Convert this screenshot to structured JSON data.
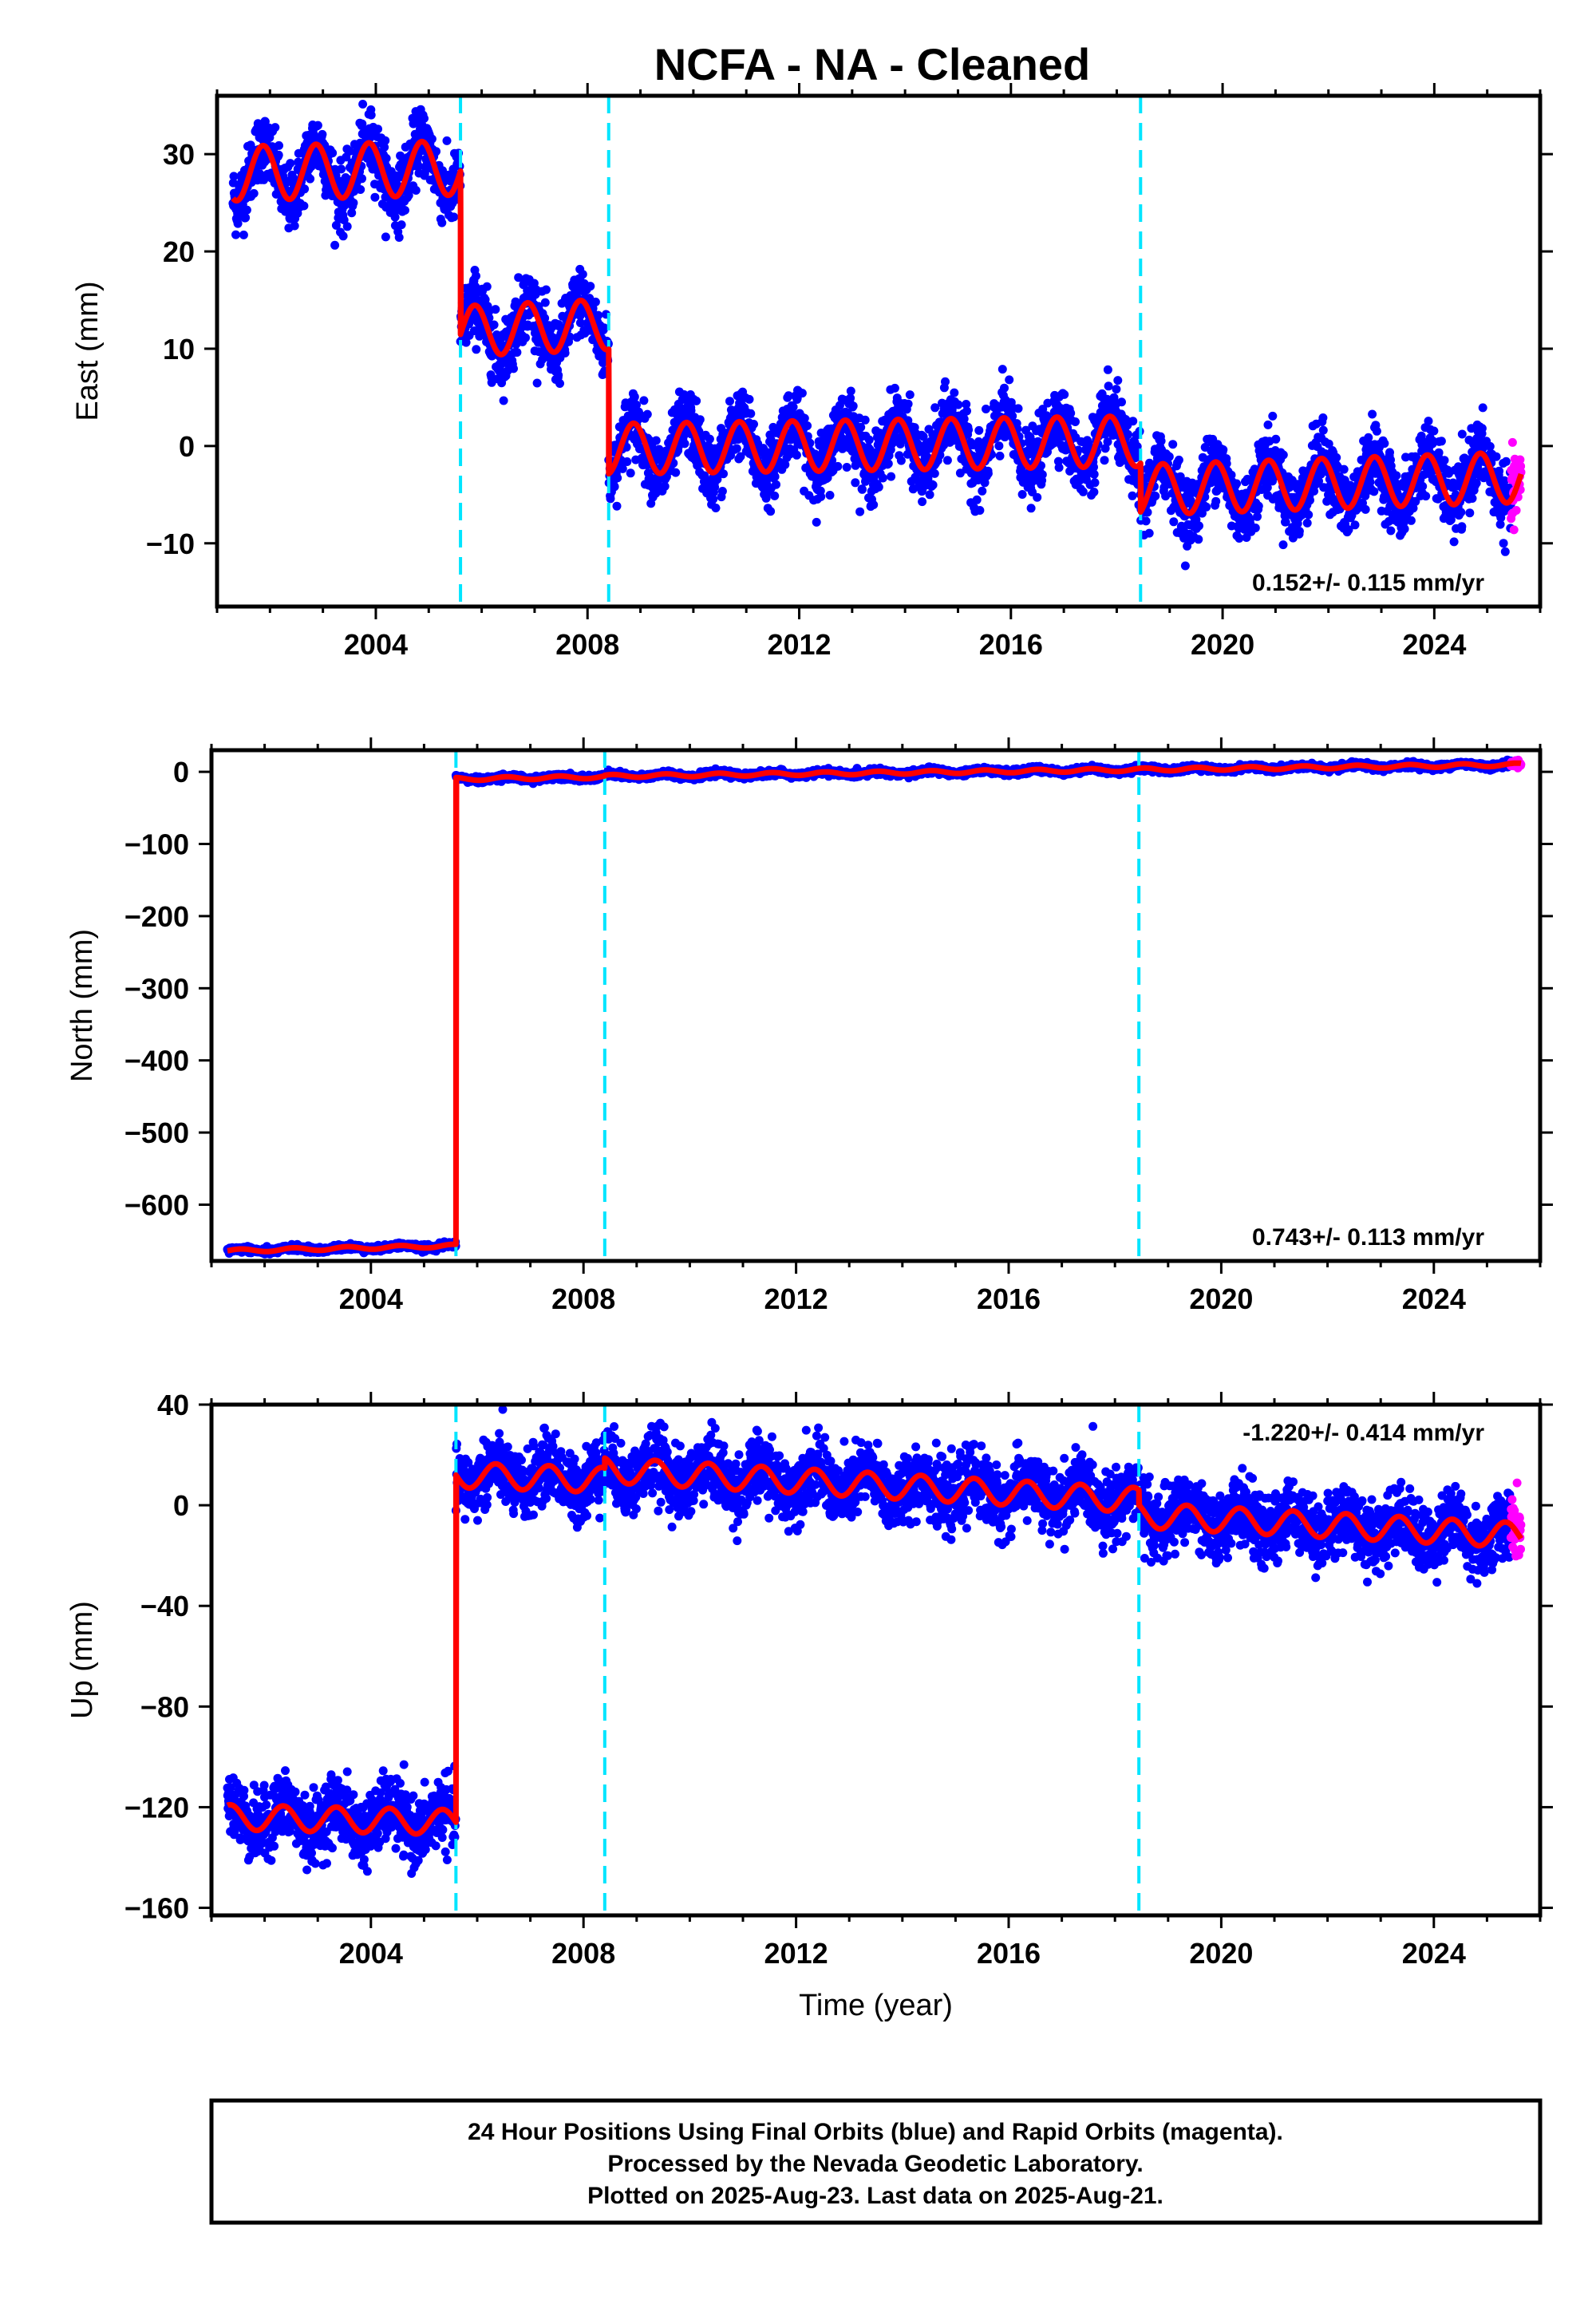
{
  "page_title": "NCFA  - NA - Cleaned",
  "colors": {
    "final_orbits": "#0000ff",
    "rapid_orbits": "#ff00ff",
    "model": "#ff0000",
    "steps": "#00e5ff",
    "frame": "#000000"
  },
  "chart_data": [
    {
      "type": "scatter",
      "component": "east",
      "ylabel": "East (mm)",
      "xlabel": "",
      "xlim": [
        2001.0,
        2026.0
      ],
      "ylim": [
        -16.5,
        36.0
      ],
      "x_ticks": [
        2004,
        2008,
        2012,
        2016,
        2020,
        2024
      ],
      "y_ticks": [
        -10,
        0,
        10,
        20,
        30
      ],
      "step_epochs": [
        2005.6,
        2008.4,
        2018.45
      ],
      "rate_label": "0.152+/- 0.115 mm/yr",
      "rate_position": "bottom-right",
      "data_start": 2001.3,
      "data_end": 2025.64,
      "rapid_start": 2025.45,
      "model_segments": [
        {
          "x0": 2001.3,
          "x1": 2005.6,
          "y0": 28.0,
          "y1": 28.6,
          "amp": 2.8,
          "phase": 0.62
        },
        {
          "x0": 2005.6,
          "x1": 2008.4,
          "y0": 11.8,
          "y1": 12.5,
          "amp": 2.6,
          "phase": 0.62
        },
        {
          "x0": 2008.4,
          "x1": 2018.45,
          "y0": -0.3,
          "y1": 0.5,
          "amp": 2.6,
          "phase": 0.62
        },
        {
          "x0": 2018.45,
          "x1": 2025.64,
          "y0": -4.5,
          "y1": -3.2,
          "amp": 2.6,
          "phase": 0.62
        }
      ],
      "noise": 1.7
    },
    {
      "type": "scatter",
      "component": "north",
      "ylabel": "North (mm)",
      "xlabel": "",
      "xlim": [
        2001.0,
        2026.0
      ],
      "ylim": [
        -678.0,
        30.0
      ],
      "x_ticks": [
        2004,
        2008,
        2012,
        2016,
        2020,
        2024
      ],
      "y_ticks": [
        -600,
        -500,
        -400,
        -300,
        -200,
        -100,
        0
      ],
      "step_epochs": [
        2005.6,
        2008.4,
        2018.45
      ],
      "rate_label": "0.743+/- 0.113 mm/yr",
      "rate_position": "bottom-right",
      "data_start": 2001.3,
      "data_end": 2025.64,
      "rapid_start": 2025.45,
      "model_segments": [
        {
          "x0": 2001.3,
          "x1": 2005.6,
          "y0": -664.0,
          "y1": -657.0,
          "amp": 2.2,
          "phase": 0.3
        },
        {
          "x0": 2005.6,
          "x1": 2008.4,
          "y0": -10.0,
          "y1": -7.0,
          "amp": 2.2,
          "phase": 0.3
        },
        {
          "x0": 2008.4,
          "x1": 2018.45,
          "y0": -6.0,
          "y1": 3.0,
          "amp": 2.2,
          "phase": 0.3
        },
        {
          "x0": 2018.45,
          "x1": 2025.64,
          "y0": 3.0,
          "y1": 10.0,
          "amp": 2.2,
          "phase": 0.3
        }
      ],
      "noise": 2.0
    },
    {
      "type": "scatter",
      "component": "up",
      "ylabel": "Up (mm)",
      "xlabel": "Time (year)",
      "xlim": [
        2001.0,
        2026.0
      ],
      "ylim": [
        -163.0,
        40.0
      ],
      "x_ticks": [
        2004,
        2008,
        2012,
        2016,
        2020,
        2024
      ],
      "y_ticks": [
        -160,
        -120,
        -80,
        -40,
        0,
        40
      ],
      "step_epochs": [
        2005.6,
        2008.4,
        2018.45
      ],
      "rate_label": "-1.220+/- 0.414 mm/yr",
      "rate_position": "top-right",
      "data_start": 2001.3,
      "data_end": 2025.64,
      "rapid_start": 2025.45,
      "model_segments": [
        {
          "x0": 2001.3,
          "x1": 2005.6,
          "y0": -124.0,
          "y1": -126.0,
          "amp": 5.0,
          "phase": 0.1
        },
        {
          "x0": 2005.6,
          "x1": 2008.4,
          "y0": 12.0,
          "y1": 10.0,
          "amp": 5.0,
          "phase": 0.1
        },
        {
          "x0": 2008.4,
          "x1": 2018.45,
          "y0": 14.0,
          "y1": 2.0,
          "amp": 5.0,
          "phase": 0.1
        },
        {
          "x0": 2018.45,
          "x1": 2025.64,
          "y0": -4.0,
          "y1": -12.0,
          "amp": 5.0,
          "phase": 0.1
        }
      ],
      "noise": 6.5
    }
  ],
  "footer": {
    "line1": "24 Hour Positions Using Final Orbits (blue) and Rapid Orbits (magenta).",
    "line2": "Processed by the Nevada Geodetic Laboratory.",
    "line3": "Plotted on 2025-Aug-23. Last data on 2025-Aug-21."
  }
}
